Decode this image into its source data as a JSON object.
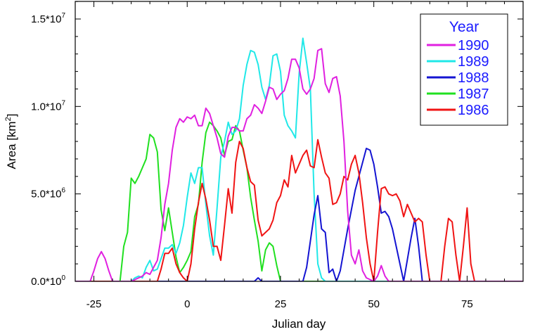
{
  "chart_data": {
    "type": "line",
    "xlabel": "Julian day",
    "ylabel": "Area [km",
    "ylabel_sup": "2",
    "ylabel_end": "]",
    "xlim": [
      -30,
      90
    ],
    "ylim": [
      0,
      16000000
    ],
    "xticks": [
      -25,
      0,
      25,
      50,
      75
    ],
    "yticks": [
      {
        "value": 0,
        "base": "0.0*10",
        "exp": "0"
      },
      {
        "value": 5000000,
        "base": "5.0*10",
        "exp": "6"
      },
      {
        "value": 10000000,
        "base": "1.0*10",
        "exp": "7"
      },
      {
        "value": 15000000,
        "base": "1.5*10",
        "exp": "7"
      }
    ],
    "legend_title": "Year",
    "legend_position": "top-right",
    "series": [
      {
        "name": "1990",
        "color": "#e020e0",
        "points": [
          [
            -30,
            0
          ],
          [
            -26,
            0
          ],
          [
            -25,
            0.6
          ],
          [
            -24,
            1.3
          ],
          [
            -23,
            1.7
          ],
          [
            -22,
            1.3
          ],
          [
            -21,
            0.6
          ],
          [
            -20,
            0
          ],
          [
            -15,
            0
          ],
          [
            -12,
            0.3
          ],
          [
            -11,
            0.5
          ],
          [
            -10,
            0.4
          ],
          [
            -9,
            0.8
          ],
          [
            -8,
            1.2
          ],
          [
            -7,
            2.5
          ],
          [
            -6,
            4.4
          ],
          [
            -5,
            5.6
          ],
          [
            -4,
            7.5
          ],
          [
            -3,
            8.8
          ],
          [
            -2,
            9.3
          ],
          [
            -1,
            9.1
          ],
          [
            0,
            9.4
          ],
          [
            1,
            9.3
          ],
          [
            2,
            9.5
          ],
          [
            3,
            8.9
          ],
          [
            4,
            8.9
          ],
          [
            5,
            9.9
          ],
          [
            6,
            9.6
          ],
          [
            7,
            8.9
          ],
          [
            8,
            8.2
          ],
          [
            9,
            7.3
          ],
          [
            10,
            7.1
          ],
          [
            11,
            8.3
          ],
          [
            12,
            8.8
          ],
          [
            13,
            8.8
          ],
          [
            14,
            8.6
          ],
          [
            15,
            8.6
          ],
          [
            16,
            9.3
          ],
          [
            17,
            9.5
          ],
          [
            18,
            10.1
          ],
          [
            19,
            9.9
          ],
          [
            20,
            9.6
          ],
          [
            21,
            10.3
          ],
          [
            22,
            11.1
          ],
          [
            23,
            11.0
          ],
          [
            24,
            10.4
          ],
          [
            25,
            10.7
          ],
          [
            26,
            10.9
          ],
          [
            27,
            11.6
          ],
          [
            28,
            12.7
          ],
          [
            29,
            12.7
          ],
          [
            30,
            12.2
          ],
          [
            31,
            11.0
          ],
          [
            32,
            10.7
          ],
          [
            33,
            11.0
          ],
          [
            34,
            11.6
          ],
          [
            35,
            13.2
          ],
          [
            36,
            13.3
          ],
          [
            37,
            11.3
          ],
          [
            38,
            10.8
          ],
          [
            39,
            11.6
          ],
          [
            40,
            11.7
          ],
          [
            41,
            10.6
          ],
          [
            42,
            8.0
          ],
          [
            43,
            4.0
          ],
          [
            44,
            1.5
          ],
          [
            45,
            1.0
          ],
          [
            46,
            1.8
          ],
          [
            47,
            0.6
          ],
          [
            48,
            0.2
          ],
          [
            50,
            0
          ],
          [
            51,
            0.3
          ],
          [
            52,
            0.9
          ],
          [
            53,
            0.3
          ],
          [
            54,
            0
          ],
          [
            90,
            0
          ]
        ]
      },
      {
        "name": "1989",
        "color": "#20e8e8",
        "points": [
          [
            -30,
            0
          ],
          [
            -15,
            0
          ],
          [
            -14,
            0.2
          ],
          [
            -13,
            0.3
          ],
          [
            -12,
            0.2
          ],
          [
            -11,
            0.8
          ],
          [
            -10,
            1.2
          ],
          [
            -9,
            0.6
          ],
          [
            -8,
            0.7
          ],
          [
            -7,
            1.3
          ],
          [
            -6,
            1.9
          ],
          [
            -5,
            1.9
          ],
          [
            -4,
            2.1
          ],
          [
            -3,
            1.6
          ],
          [
            -2,
            2.2
          ],
          [
            -1,
            3.2
          ],
          [
            0,
            4.8
          ],
          [
            1,
            6.2
          ],
          [
            2,
            5.6
          ],
          [
            3,
            6.5
          ],
          [
            4,
            6.5
          ],
          [
            5,
            4.4
          ],
          [
            6,
            2.6
          ],
          [
            7,
            1.5
          ],
          [
            8,
            4.2
          ],
          [
            9,
            7.1
          ],
          [
            10,
            8.0
          ],
          [
            11,
            9.1
          ],
          [
            12,
            8.4
          ],
          [
            13,
            8.6
          ],
          [
            14,
            9.3
          ],
          [
            15,
            11.2
          ],
          [
            16,
            12.4
          ],
          [
            17,
            13.2
          ],
          [
            18,
            13.1
          ],
          [
            19,
            12.4
          ],
          [
            20,
            11.1
          ],
          [
            21,
            10.4
          ],
          [
            22,
            11.2
          ],
          [
            23,
            12.9
          ],
          [
            24,
            13.0
          ],
          [
            25,
            12.0
          ],
          [
            26,
            9.5
          ],
          [
            27,
            8.9
          ],
          [
            28,
            8.6
          ],
          [
            29,
            8.2
          ],
          [
            30,
            11.9
          ],
          [
            31,
            13.9
          ],
          [
            32,
            12.5
          ],
          [
            33,
            11.0
          ],
          [
            34,
            5.0
          ],
          [
            35,
            1.0
          ],
          [
            36,
            0.2
          ],
          [
            37,
            0
          ],
          [
            90,
            0
          ]
        ]
      },
      {
        "name": "1988",
        "color": "#1414d2",
        "points": [
          [
            -30,
            0
          ],
          [
            18,
            0
          ],
          [
            19,
            0.2
          ],
          [
            20,
            0
          ],
          [
            31,
            0
          ],
          [
            32,
            0.8
          ],
          [
            33,
            2.3
          ],
          [
            34,
            3.8
          ],
          [
            35,
            4.9
          ],
          [
            36,
            3.0
          ],
          [
            37,
            2.8
          ],
          [
            38,
            0.5
          ],
          [
            39,
            0.7
          ],
          [
            40,
            0
          ],
          [
            41,
            0.6
          ],
          [
            42,
            1.8
          ],
          [
            43,
            3.0
          ],
          [
            44,
            4.1
          ],
          [
            45,
            5.2
          ],
          [
            46,
            6.0
          ],
          [
            47,
            6.8
          ],
          [
            48,
            7.6
          ],
          [
            49,
            7.5
          ],
          [
            50,
            6.7
          ],
          [
            51,
            5.4
          ],
          [
            52,
            3.9
          ],
          [
            53,
            4.0
          ],
          [
            54,
            3.7
          ],
          [
            55,
            3.0
          ],
          [
            56,
            2.0
          ],
          [
            57,
            1.0
          ],
          [
            58,
            0
          ],
          [
            60,
            2.5
          ],
          [
            61,
            3.6
          ],
          [
            62,
            2.0
          ],
          [
            63,
            0
          ],
          [
            90,
            0
          ]
        ]
      },
      {
        "name": "1987",
        "color": "#20e020",
        "points": [
          [
            -30,
            0
          ],
          [
            -18,
            0
          ],
          [
            -17,
            2.0
          ],
          [
            -16,
            2.8
          ],
          [
            -15,
            5.9
          ],
          [
            -14,
            5.6
          ],
          [
            -13,
            6.0
          ],
          [
            -12,
            6.5
          ],
          [
            -11,
            7.0
          ],
          [
            -10,
            8.4
          ],
          [
            -9,
            8.2
          ],
          [
            -8,
            7.4
          ],
          [
            -7,
            4.1
          ],
          [
            -6,
            2.9
          ],
          [
            -5,
            4.2
          ],
          [
            -4,
            2.8
          ],
          [
            -3,
            1.4
          ],
          [
            -2,
            0.5
          ],
          [
            -1,
            0.8
          ],
          [
            0,
            1.2
          ],
          [
            1,
            1.7
          ],
          [
            2,
            3.7
          ],
          [
            3,
            4.4
          ],
          [
            4,
            6.8
          ],
          [
            5,
            8.5
          ],
          [
            6,
            9.1
          ],
          [
            7,
            8.9
          ],
          [
            8,
            8.6
          ],
          [
            9,
            8.2
          ],
          [
            10,
            7.2
          ],
          [
            11,
            8.0
          ],
          [
            12,
            8.1
          ],
          [
            13,
            8.9
          ],
          [
            14,
            8.6
          ],
          [
            15,
            7.5
          ],
          [
            16,
            6.5
          ],
          [
            17,
            4.8
          ],
          [
            18,
            3.5
          ],
          [
            19,
            2.3
          ],
          [
            20,
            0.6
          ],
          [
            21,
            1.8
          ],
          [
            22,
            2.2
          ],
          [
            23,
            2.0
          ],
          [
            24,
            0.9
          ],
          [
            25,
            0
          ],
          [
            90,
            0
          ]
        ]
      },
      {
        "name": "1986",
        "color": "#f01414",
        "points": [
          [
            -30,
            0
          ],
          [
            -8,
            0
          ],
          [
            -7,
            0.7
          ],
          [
            -6,
            1.6
          ],
          [
            -5,
            1.6
          ],
          [
            -4,
            1.9
          ],
          [
            -3,
            1.0
          ],
          [
            -2,
            0.5
          ],
          [
            -1,
            0.2
          ],
          [
            0,
            0
          ],
          [
            1,
            1.0
          ],
          [
            2,
            3.0
          ],
          [
            3,
            4.5
          ],
          [
            4,
            5.6
          ],
          [
            5,
            4.7
          ],
          [
            6,
            3.5
          ],
          [
            7,
            2.0
          ],
          [
            8,
            2.0
          ],
          [
            9,
            1.2
          ],
          [
            10,
            3.2
          ],
          [
            11,
            5.3
          ],
          [
            12,
            3.9
          ],
          [
            13,
            6.8
          ],
          [
            14,
            8.0
          ],
          [
            15,
            7.6
          ],
          [
            16,
            6.5
          ],
          [
            17,
            5.7
          ],
          [
            18,
            5.5
          ],
          [
            19,
            3.5
          ],
          [
            20,
            2.6
          ],
          [
            21,
            2.8
          ],
          [
            22,
            3.0
          ],
          [
            23,
            3.5
          ],
          [
            24,
            4.5
          ],
          [
            25,
            4.9
          ],
          [
            26,
            5.8
          ],
          [
            27,
            5.4
          ],
          [
            28,
            7.2
          ],
          [
            29,
            6.2
          ],
          [
            30,
            6.7
          ],
          [
            31,
            7.2
          ],
          [
            32,
            7.5
          ],
          [
            33,
            6.6
          ],
          [
            34,
            6.5
          ],
          [
            35,
            8.1
          ],
          [
            36,
            7.1
          ],
          [
            37,
            6.2
          ],
          [
            38,
            5.9
          ],
          [
            39,
            4.4
          ],
          [
            40,
            4.5
          ],
          [
            41,
            5.0
          ],
          [
            42,
            6.0
          ],
          [
            43,
            5.8
          ],
          [
            44,
            6.7
          ],
          [
            45,
            7.2
          ],
          [
            46,
            6.2
          ],
          [
            47,
            4.5
          ],
          [
            48,
            2.5
          ],
          [
            49,
            1.0
          ],
          [
            50,
            0
          ],
          [
            51,
            2.8
          ],
          [
            52,
            5.3
          ],
          [
            53,
            5.4
          ],
          [
            54,
            5.0
          ],
          [
            55,
            4.9
          ],
          [
            56,
            5.0
          ],
          [
            57,
            4.6
          ],
          [
            58,
            3.7
          ],
          [
            59,
            4.4
          ],
          [
            60,
            3.9
          ],
          [
            61,
            3.4
          ],
          [
            62,
            3.6
          ],
          [
            63,
            3.4
          ],
          [
            64,
            1.5
          ],
          [
            65,
            0
          ],
          [
            68,
            0
          ],
          [
            69,
            2.0
          ],
          [
            70,
            3.6
          ],
          [
            71,
            3.4
          ],
          [
            72,
            1.5
          ],
          [
            73,
            0
          ],
          [
            74,
            2.0
          ],
          [
            75,
            4.2
          ],
          [
            76,
            1.0
          ],
          [
            77,
            0
          ],
          [
            90,
            0
          ]
        ]
      }
    ]
  }
}
